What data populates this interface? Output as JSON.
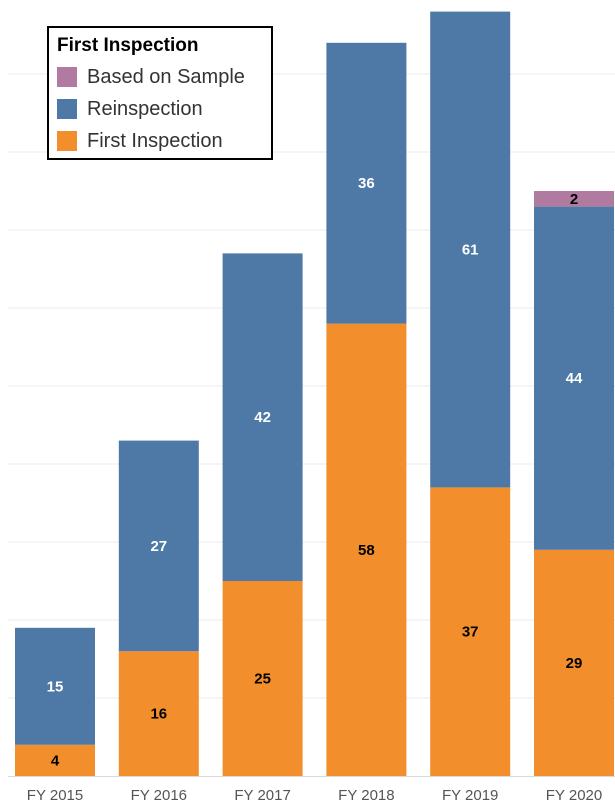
{
  "chart_data": {
    "type": "bar",
    "stacked": true,
    "categories": [
      "FY 2015",
      "FY 2016",
      "FY 2017",
      "FY 2018",
      "FY 2019",
      "FY 2020"
    ],
    "series": [
      {
        "name": "First Inspection",
        "color": "#f28e2b",
        "values": [
          4,
          16,
          25,
          58,
          37,
          29
        ]
      },
      {
        "name": "Reinspection",
        "color": "#4e79a7",
        "values": [
          15,
          27,
          42,
          36,
          61,
          44
        ]
      },
      {
        "name": "Based on Sample",
        "color": "#b07aa1",
        "values": [
          0,
          0,
          0,
          0,
          0,
          2
        ]
      }
    ],
    "legend": {
      "title": "First Inspection",
      "position": "top-left",
      "entries": [
        "Based on Sample",
        "Reinspection",
        "First Inspection"
      ]
    },
    "grid": true,
    "ylim": [
      0,
      99
    ]
  }
}
